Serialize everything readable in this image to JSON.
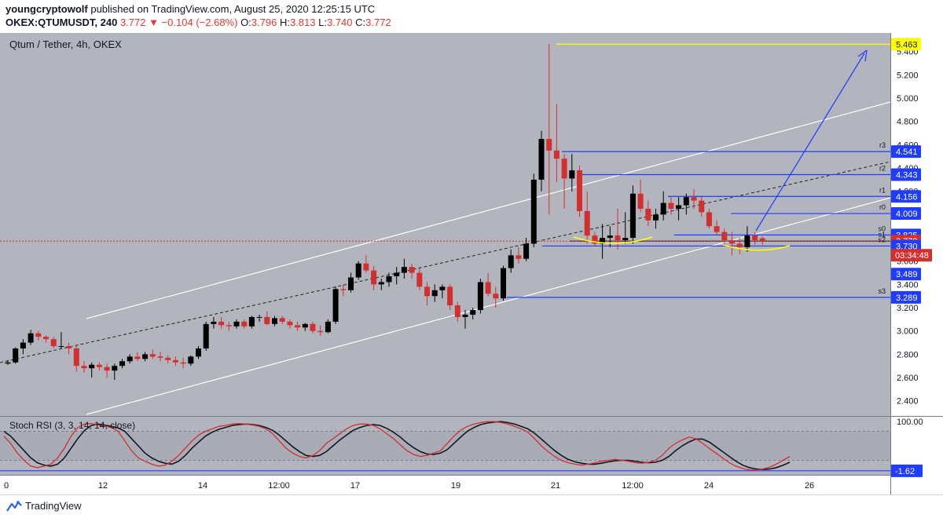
{
  "header": {
    "author": "youngcryptowolf",
    "published": "published on TradingView.com, August 25, 2020 12:25:15 UTC",
    "symbol_line": "OKEX:QTUMUSDT, 240",
    "last": "3.772",
    "change": "▼ −0.104 (−2.68%)",
    "o_label": "O:",
    "o": "3.796",
    "h_label": "H:",
    "h": "3.813",
    "l_label": "L:",
    "l": "3.740",
    "c_label": "C:",
    "c": "3.772"
  },
  "chart_title": "Qtum / Tether, 4h, OKEX",
  "footer": {
    "brand": "TradingView"
  },
  "colors": {
    "up": "#000000",
    "down": "#d32f2f",
    "level": "#1f3cff",
    "target": "#ffff00",
    "channel": "#ffffff",
    "bg": "#b2b5be"
  },
  "chart_data": [
    {
      "type": "candlestick",
      "title": "Qtum / Tether, 4h, OKEX",
      "ylim": [
        2.27,
        5.56
      ],
      "ytick_labels": [
        "2.400",
        "2.600",
        "2.800",
        "3.000",
        "3.200",
        "3.400",
        "3.600",
        "4.000",
        "4.200",
        "4.400",
        "4.600",
        "4.800",
        "5.000",
        "5.200",
        "5.400"
      ],
      "xtick_labels": [
        "0",
        "12",
        "14",
        "12:00",
        "17",
        "19",
        "21",
        "12:00",
        "24",
        "26"
      ],
      "price_tags": [
        {
          "label": "5.463",
          "value": 5.463,
          "style": "yellow"
        },
        {
          "label": "4.541",
          "value": 4.541,
          "style": "blue"
        },
        {
          "label": "4.343",
          "value": 4.343,
          "style": "blue"
        },
        {
          "label": "4.156",
          "value": 4.156,
          "style": "blue"
        },
        {
          "label": "4.009",
          "value": 4.009,
          "style": "blue"
        },
        {
          "label": "3.825",
          "value": 3.825,
          "style": "blue"
        },
        {
          "label": "3.772",
          "value": 3.772,
          "style": "red"
        },
        {
          "label": "3.730",
          "value": 3.73,
          "style": "blue"
        },
        {
          "label": "3.489",
          "value": 3.489,
          "style": "blue"
        },
        {
          "label": "3.289",
          "value": 3.289,
          "style": "blue"
        }
      ],
      "countdown": "03:34:48",
      "pivots": [
        {
          "label": "r3",
          "value": 4.541
        },
        {
          "label": "r2",
          "value": 4.343
        },
        {
          "label": "r1",
          "value": 4.156
        },
        {
          "label": "r0",
          "value": 4.009
        },
        {
          "label": "s0",
          "value": 3.825
        },
        {
          "label": "s1",
          "value": 3.772
        },
        {
          "label": "s2",
          "value": 3.73
        },
        {
          "label": "s3",
          "value": 3.289
        }
      ],
      "candles": [
        [
          2.72,
          2.75,
          2.71,
          2.73
        ],
        [
          2.73,
          2.86,
          2.72,
          2.85
        ],
        [
          2.85,
          2.93,
          2.8,
          2.9
        ],
        [
          2.9,
          3.01,
          2.88,
          2.98
        ],
        [
          2.98,
          3.0,
          2.92,
          2.95
        ],
        [
          2.95,
          2.96,
          2.9,
          2.93
        ],
        [
          2.93,
          2.95,
          2.85,
          2.87
        ],
        [
          2.87,
          2.99,
          2.85,
          2.87
        ],
        [
          2.87,
          2.9,
          2.8,
          2.85
        ],
        [
          2.85,
          2.87,
          2.65,
          2.7
        ],
        [
          2.7,
          2.74,
          2.64,
          2.68
        ],
        [
          2.68,
          2.73,
          2.6,
          2.71
        ],
        [
          2.71,
          2.73,
          2.66,
          2.69
        ],
        [
          2.69,
          2.72,
          2.6,
          2.66
        ],
        [
          2.66,
          2.72,
          2.58,
          2.7
        ],
        [
          2.7,
          2.76,
          2.68,
          2.74
        ],
        [
          2.74,
          2.8,
          2.72,
          2.78
        ],
        [
          2.78,
          2.82,
          2.74,
          2.76
        ],
        [
          2.76,
          2.82,
          2.74,
          2.8
        ],
        [
          2.8,
          2.84,
          2.76,
          2.78
        ],
        [
          2.78,
          2.82,
          2.74,
          2.77
        ],
        [
          2.77,
          2.79,
          2.72,
          2.75
        ],
        [
          2.75,
          2.78,
          2.7,
          2.73
        ],
        [
          2.73,
          2.77,
          2.68,
          2.72
        ],
        [
          2.72,
          2.79,
          2.7,
          2.78
        ],
        [
          2.78,
          2.87,
          2.76,
          2.85
        ],
        [
          2.85,
          3.08,
          2.83,
          3.06
        ],
        [
          3.06,
          3.12,
          3.02,
          3.08
        ],
        [
          3.08,
          3.12,
          3.02,
          3.05
        ],
        [
          3.05,
          3.08,
          3.0,
          3.04
        ],
        [
          3.04,
          3.1,
          3.02,
          3.08
        ],
        [
          3.08,
          3.1,
          3.02,
          3.04
        ],
        [
          3.04,
          3.13,
          3.02,
          3.12
        ],
        [
          3.12,
          3.14,
          3.08,
          3.12
        ],
        [
          3.12,
          3.17,
          3.05,
          3.06
        ],
        [
          3.06,
          3.13,
          3.04,
          3.11
        ],
        [
          3.11,
          3.13,
          3.06,
          3.08
        ],
        [
          3.08,
          3.1,
          3.02,
          3.05
        ],
        [
          3.05,
          3.08,
          3.0,
          3.03
        ],
        [
          3.03,
          3.07,
          3.0,
          3.06
        ],
        [
          3.06,
          3.08,
          2.98,
          3.0
        ],
        [
          3.0,
          3.05,
          2.96,
          2.99
        ],
        [
          2.99,
          3.1,
          2.98,
          3.08
        ],
        [
          3.08,
          3.38,
          3.06,
          3.36
        ],
        [
          3.36,
          3.4,
          3.3,
          3.35
        ],
        [
          3.35,
          3.5,
          3.33,
          3.46
        ],
        [
          3.46,
          3.6,
          3.44,
          3.58
        ],
        [
          3.58,
          3.65,
          3.5,
          3.52
        ],
        [
          3.52,
          3.56,
          3.35,
          3.4
        ],
        [
          3.4,
          3.45,
          3.35,
          3.42
        ],
        [
          3.42,
          3.5,
          3.38,
          3.47
        ],
        [
          3.47,
          3.55,
          3.4,
          3.5
        ],
        [
          3.5,
          3.62,
          3.45,
          3.55
        ],
        [
          3.55,
          3.58,
          3.45,
          3.5
        ],
        [
          3.5,
          3.54,
          3.35,
          3.38
        ],
        [
          3.38,
          3.42,
          3.22,
          3.3
        ],
        [
          3.3,
          3.4,
          3.25,
          3.35
        ],
        [
          3.35,
          3.4,
          3.28,
          3.38
        ],
        [
          3.38,
          3.4,
          3.18,
          3.22
        ],
        [
          3.22,
          3.25,
          3.08,
          3.12
        ],
        [
          3.12,
          3.18,
          3.02,
          3.14
        ],
        [
          3.14,
          3.2,
          3.1,
          3.18
        ],
        [
          3.18,
          3.45,
          3.15,
          3.42
        ],
        [
          3.42,
          3.5,
          3.3,
          3.32
        ],
        [
          3.32,
          3.38,
          3.2,
          3.28
        ],
        [
          3.28,
          3.56,
          3.26,
          3.54
        ],
        [
          3.54,
          3.7,
          3.5,
          3.65
        ],
        [
          3.65,
          3.72,
          3.58,
          3.62
        ],
        [
          3.62,
          3.8,
          3.6,
          3.75
        ],
        [
          3.75,
          4.35,
          3.72,
          4.3
        ],
        [
          4.3,
          4.72,
          4.2,
          4.65
        ],
        [
          4.65,
          5.463,
          4.0,
          4.55
        ],
        [
          4.55,
          4.95,
          4.28,
          4.48
        ],
        [
          4.48,
          4.52,
          4.05,
          4.31
        ],
        [
          4.31,
          4.52,
          4.2,
          4.38
        ],
        [
          4.38,
          4.42,
          3.98,
          4.03
        ],
        [
          4.03,
          4.2,
          3.75,
          3.82
        ],
        [
          3.82,
          3.85,
          3.73,
          3.75
        ],
        [
          3.75,
          3.92,
          3.62,
          3.8
        ],
        [
          3.8,
          3.9,
          3.72,
          3.82
        ],
        [
          3.82,
          4.05,
          3.7,
          3.78
        ],
        [
          3.78,
          4.02,
          3.75,
          3.8
        ],
        [
          3.8,
          4.25,
          3.75,
          4.18
        ],
        [
          4.18,
          4.3,
          4.02,
          4.05
        ],
        [
          4.05,
          4.12,
          3.9,
          3.95
        ],
        [
          3.95,
          4.05,
          3.88,
          4.0
        ],
        [
          4.0,
          4.2,
          3.95,
          4.1
        ],
        [
          4.1,
          4.15,
          4.0,
          4.05
        ],
        [
          4.05,
          4.15,
          3.95,
          4.08
        ],
        [
          4.08,
          4.18,
          4.0,
          4.15
        ],
        [
          4.15,
          4.22,
          4.05,
          4.12
        ],
        [
          4.12,
          4.15,
          3.98,
          4.02
        ],
        [
          4.02,
          4.05,
          3.88,
          3.9
        ],
        [
          3.9,
          3.95,
          3.82,
          3.85
        ],
        [
          3.85,
          3.88,
          3.74,
          3.78
        ],
        [
          3.78,
          3.85,
          3.65,
          3.75
        ],
        [
          3.75,
          3.8,
          3.66,
          3.72
        ],
        [
          3.72,
          3.9,
          3.68,
          3.82
        ],
        [
          3.82,
          3.85,
          3.74,
          3.78
        ],
        [
          3.796,
          3.813,
          3.74,
          3.772
        ]
      ],
      "indicator": {
        "label": "Stoch RSI (3, 3, 14, 14, close)",
        "ylim": [
          -10,
          110
        ],
        "ytick_labels": [
          "100.00",
          "-1.62"
        ],
        "k": [
          70,
          55,
          35,
          20,
          8,
          5,
          8,
          12,
          25,
          45,
          70,
          88,
          95,
          96,
          93,
          90,
          88,
          80,
          60,
          40,
          25,
          18,
          12,
          8,
          10,
          18,
          30,
          45,
          60,
          72,
          80,
          85,
          90,
          92,
          95,
          96,
          95,
          93,
          90,
          85,
          75,
          60,
          45,
          35,
          28,
          25,
          30,
          40,
          55,
          65,
          75,
          85,
          92,
          95,
          95,
          92,
          85,
          75,
          65,
          52,
          40,
          32,
          28,
          30,
          35,
          40,
          55,
          70,
          82,
          90,
          95,
          98,
          100,
          100,
          98,
          95,
          90,
          85,
          78,
          65,
          50,
          38,
          28,
          20,
          15,
          12,
          10,
          12,
          15,
          18,
          20,
          22,
          20,
          18,
          15,
          14,
          16,
          20,
          30,
          45,
          55,
          62,
          68,
          65,
          55,
          45,
          35,
          25,
          15,
          8,
          3,
          0,
          0,
          2,
          6,
          12,
          20,
          28
        ],
        "d": [
          80,
          70,
          55,
          40,
          25,
          15,
          10,
          8,
          12,
          25,
          45,
          65,
          82,
          92,
          95,
          93,
          90,
          87,
          80,
          65,
          50,
          35,
          25,
          18,
          14,
          12,
          18,
          30,
          45,
          58,
          70,
          78,
          84,
          88,
          92,
          94,
          95,
          94,
          92,
          88,
          82,
          72,
          60,
          48,
          38,
          30,
          28,
          30,
          38,
          50,
          62,
          72,
          82,
          88,
          92,
          94,
          92,
          86,
          78,
          68,
          56,
          46,
          38,
          33,
          32,
          35,
          42,
          55,
          68,
          80,
          88,
          94,
          97,
          99,
          100,
          98,
          95,
          90,
          85,
          76,
          64,
          52,
          40,
          30,
          22,
          17,
          14,
          12,
          12,
          14,
          17,
          19,
          20,
          20,
          18,
          16,
          15,
          16,
          20,
          28,
          40,
          50,
          58,
          64,
          64,
          58,
          48,
          38,
          28,
          18,
          10,
          5,
          2,
          1,
          2,
          5,
          10,
          16
        ]
      }
    }
  ]
}
